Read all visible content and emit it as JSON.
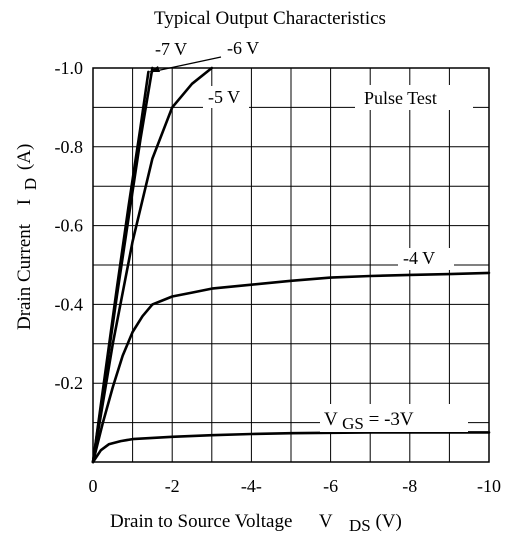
{
  "chart_data": {
    "type": "line",
    "title": "Typical Output Characteristics",
    "xlabel": {
      "main": "Drain to Source Voltage",
      "symbol": "V",
      "subscript": "DS",
      "unit": "(V)"
    },
    "ylabel": {
      "main": "Drain Current",
      "symbol": "I",
      "subscript": "D",
      "unit": "(A)"
    },
    "xlim": [
      0,
      -10
    ],
    "ylim": [
      0,
      -1.0
    ],
    "grid": true,
    "x_ticks": [
      {
        "value": 0,
        "label": "0"
      },
      {
        "value": -2,
        "label": "-2"
      },
      {
        "value": -4,
        "label": "-4-"
      },
      {
        "value": -6,
        "label": "-6"
      },
      {
        "value": -8,
        "label": "-8"
      },
      {
        "value": -10,
        "label": "-10"
      }
    ],
    "y_ticks": [
      {
        "value": -1.0,
        "label": "-1.0"
      },
      {
        "value": -0.8,
        "label": "-0.8"
      },
      {
        "value": -0.6,
        "label": "-0.6"
      },
      {
        "value": -0.4,
        "label": "-0.4"
      },
      {
        "value": -0.2,
        "label": "-0.2"
      }
    ],
    "annotation": "Pulse Test",
    "series": [
      {
        "name": "-7 V",
        "x": [
          0,
          -0.3,
          -0.6,
          -0.9,
          -1.2,
          -1.4
        ],
        "y": [
          0,
          -0.22,
          -0.44,
          -0.65,
          -0.85,
          -0.99
        ]
      },
      {
        "name": "-6 V",
        "x": [
          0,
          -0.3,
          -0.6,
          -0.9,
          -1.2,
          -1.5
        ],
        "y": [
          0,
          -0.21,
          -0.42,
          -0.62,
          -0.82,
          -1.0
        ]
      },
      {
        "name": "-5 V",
        "x": [
          0,
          -0.5,
          -1.0,
          -1.5,
          -2.0,
          -2.5,
          -3.0
        ],
        "y": [
          0,
          -0.3,
          -0.56,
          -0.77,
          -0.9,
          -0.96,
          -1.0
        ]
      },
      {
        "name": "-4 V",
        "x": [
          0,
          -0.25,
          -0.5,
          -0.75,
          -1.0,
          -1.25,
          -1.5,
          -1.75,
          -2.0,
          -2.5,
          -3,
          -4,
          -5,
          -6,
          -7,
          -8,
          -9,
          -10
        ],
        "y": [
          0,
          -0.1,
          -0.19,
          -0.27,
          -0.33,
          -0.37,
          -0.4,
          -0.41,
          -0.42,
          -0.43,
          -0.44,
          -0.45,
          -0.46,
          -0.468,
          -0.472,
          -0.475,
          -0.477,
          -0.48
        ]
      },
      {
        "name": "V_GS = -3V",
        "x": [
          0,
          -0.2,
          -0.4,
          -0.7,
          -1.0,
          -2.0,
          -3,
          -4,
          -5,
          -6,
          -7,
          -8,
          -9,
          -10
        ],
        "y": [
          0,
          -0.03,
          -0.045,
          -0.053,
          -0.058,
          -0.064,
          -0.068,
          -0.071,
          -0.073,
          -0.074,
          -0.075,
          -0.075,
          -0.075,
          -0.075
        ]
      }
    ],
    "series_labels": [
      {
        "series": "-7 V",
        "text": "-7 V"
      },
      {
        "series": "-6 V",
        "text": "-6 V"
      },
      {
        "series": "-5 V",
        "text": "-5 V"
      },
      {
        "series": "-4 V",
        "text": "-4 V"
      },
      {
        "series": "V_GS = -3V",
        "prefix": "V",
        "subscript": "GS",
        "suffix": " = -3V"
      }
    ]
  }
}
